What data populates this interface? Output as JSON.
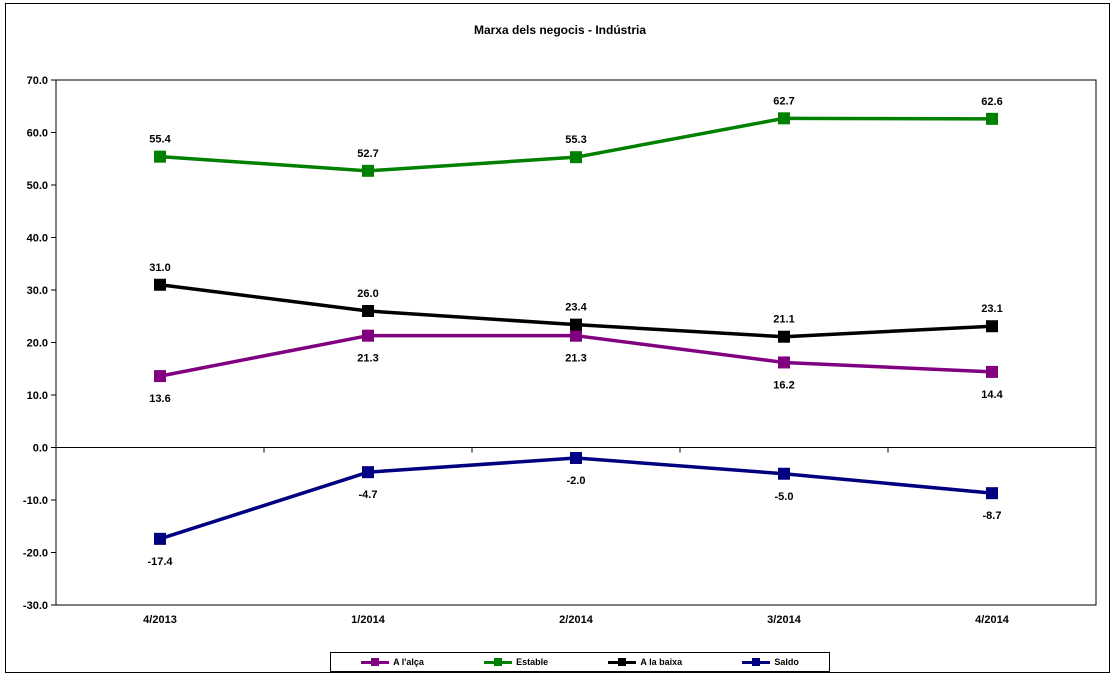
{
  "chart_data": {
    "type": "line",
    "title": "Marxa dels negocis - Indústria",
    "categories": [
      "4/2013",
      "1/2014",
      "2/2014",
      "3/2014",
      "4/2014"
    ],
    "ylim": [
      -30,
      70
    ],
    "yticks": [
      "70.0",
      "60.0",
      "50.0",
      "40.0",
      "30.0",
      "20.0",
      "10.0",
      "0.0",
      "-10.0",
      "-20.0",
      "-30.0"
    ],
    "ytick_values": [
      70,
      60,
      50,
      40,
      30,
      20,
      10,
      0,
      -10,
      -20,
      -30
    ],
    "grid": false,
    "legend_position": "bottom",
    "series": [
      {
        "name": "A l'alça",
        "color": "#800080",
        "values": [
          13.6,
          21.3,
          21.3,
          16.2,
          14.4
        ],
        "labels": [
          "13.6",
          "21.3",
          "21.3",
          "16.2",
          "14.4"
        ],
        "label_side": [
          "below",
          "below",
          "below",
          "below",
          "below"
        ]
      },
      {
        "name": "Estable",
        "color": "#008000",
        "values": [
          55.4,
          52.7,
          55.3,
          62.7,
          62.6
        ],
        "labels": [
          "55.4",
          "52.7",
          "55.3",
          "62.7",
          "62.6"
        ],
        "label_side": [
          "above",
          "above",
          "above",
          "above",
          "above"
        ]
      },
      {
        "name": "A la baixa",
        "color": "#000000",
        "values": [
          31.0,
          26.0,
          23.4,
          21.1,
          23.1
        ],
        "labels": [
          "31.0",
          "26.0",
          "23.4",
          "21.1",
          "23.1"
        ],
        "label_side": [
          "above",
          "above",
          "above",
          "above",
          "above"
        ]
      },
      {
        "name": "Saldo",
        "color": "#000080",
        "values": [
          -17.4,
          -4.7,
          -2.0,
          -5.0,
          -8.7
        ],
        "labels": [
          "-17.4",
          "-4.7",
          "-2.0",
          "-5.0",
          "-8.7"
        ],
        "label_side": [
          "below",
          "below",
          "below",
          "below",
          "below"
        ]
      }
    ]
  }
}
